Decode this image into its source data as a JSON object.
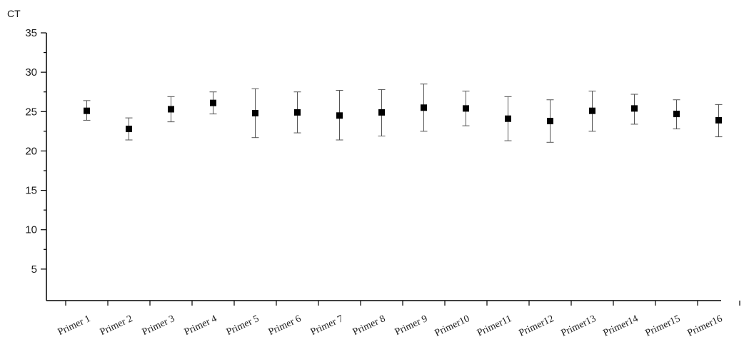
{
  "chart_data": {
    "type": "scatter",
    "title": "",
    "xlabel": "",
    "ylabel": "CT",
    "ylim": [
      1,
      35
    ],
    "yticks": [
      5,
      10,
      15,
      20,
      25,
      30,
      35
    ],
    "grid": false,
    "legend": "none",
    "marker": "square",
    "error_bars": true,
    "categories": [
      "Primer 1",
      "Primer 2",
      "Primer 3",
      "Primer 4",
      "Primer 5",
      "Primer 6",
      "Primer 7",
      "Primer 8",
      "Primer 9",
      "Primer10",
      "Primer11",
      "Primer12",
      "Primer13",
      "Primer14",
      "Primer15",
      "Primer16"
    ],
    "series": [
      {
        "values": [
          25.1,
          22.8,
          25.3,
          26.1,
          24.8,
          24.9,
          24.5,
          24.9,
          25.5,
          25.4,
          24.1,
          23.8,
          25.1,
          25.4,
          24.7,
          23.9
        ],
        "err_upper": [
          26.4,
          24.2,
          26.9,
          27.5,
          27.9,
          27.5,
          27.7,
          27.8,
          28.5,
          27.6,
          26.9,
          26.5,
          27.6,
          27.2,
          26.5,
          25.9
        ],
        "err_lower": [
          23.9,
          21.4,
          23.7,
          24.7,
          21.7,
          22.3,
          21.4,
          21.9,
          22.5,
          23.2,
          21.3,
          21.1,
          22.5,
          23.4,
          22.8,
          21.8
        ]
      }
    ],
    "colors": {
      "marker": "#000000",
      "errorbar": "#555555",
      "axis": "#000000"
    }
  }
}
